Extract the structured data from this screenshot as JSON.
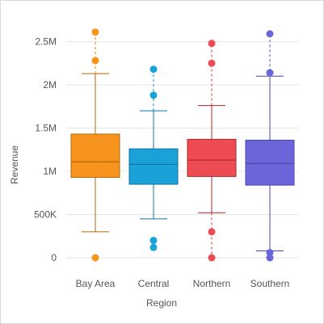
{
  "chart_data": {
    "type": "boxplot",
    "xlabel": "Region",
    "ylabel": "Revenue",
    "ylim": [
      0,
      2700000
    ],
    "grid": true,
    "yticks": [
      {
        "value": 0,
        "label": "0"
      },
      {
        "value": 500000,
        "label": "500K"
      },
      {
        "value": 1000000,
        "label": "1M"
      },
      {
        "value": 1500000,
        "label": "1.5M"
      },
      {
        "value": 2000000,
        "label": "2M"
      },
      {
        "value": 2500000,
        "label": "2.5M"
      }
    ],
    "categories": [
      "Bay Area",
      "Central",
      "Northern",
      "Southern"
    ],
    "boxes": [
      {
        "category": "Bay Area",
        "color": "#f7941d",
        "whisker_color": "#b9650a",
        "q1": 930000,
        "median": 1110000,
        "q3": 1430000,
        "whisker_low": 300000,
        "whisker_high": 2130000,
        "outliers": [
          0,
          2280000,
          2610000
        ],
        "dashed_low": false,
        "dashed_high": true
      },
      {
        "category": "Central",
        "color": "#1aa1d8",
        "whisker_color": "#0f73a0",
        "q1": 850000,
        "median": 1080000,
        "q3": 1260000,
        "whisker_low": 450000,
        "whisker_high": 1700000,
        "outliers": [
          120000,
          200000,
          1880000,
          2180000
        ],
        "dashed_low": false,
        "dashed_high": true
      },
      {
        "category": "Northern",
        "color": "#ec4c52",
        "whisker_color": "#b3262c",
        "q1": 940000,
        "median": 1130000,
        "q3": 1370000,
        "whisker_low": 520000,
        "whisker_high": 1760000,
        "outliers": [
          0,
          300000,
          2250000,
          2480000
        ],
        "dashed_low": true,
        "dashed_high": true
      },
      {
        "category": "Southern",
        "color": "#6a66d9",
        "whisker_color": "#4a46b0",
        "q1": 840000,
        "median": 1090000,
        "q3": 1360000,
        "whisker_low": 80000,
        "whisker_high": 2100000,
        "outliers": [
          0,
          60000,
          2140000,
          2590000
        ],
        "dashed_low": false,
        "dashed_high": true
      }
    ]
  }
}
